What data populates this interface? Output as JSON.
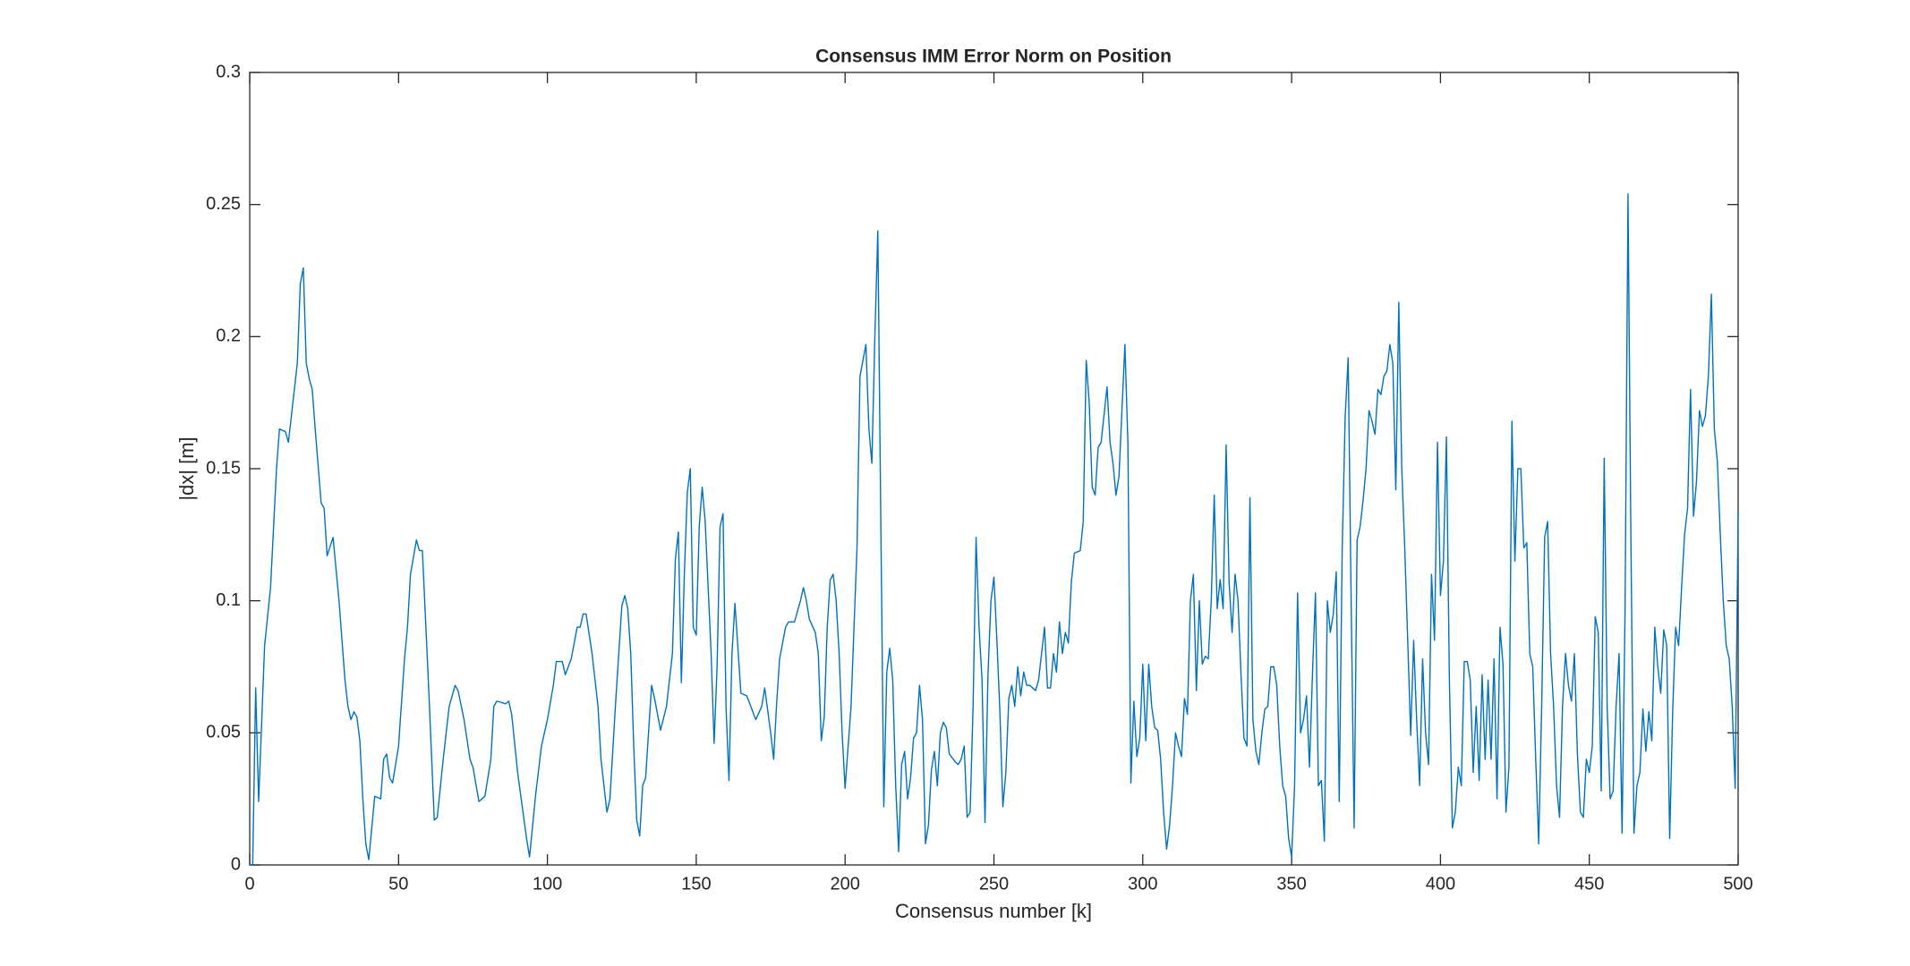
{
  "chart_data": {
    "type": "line",
    "title": "Consensus IMM Error Norm on Position",
    "x_label": "Consensus number [k]",
    "y_label": "|dx| [m]",
    "xlim": [
      0,
      500
    ],
    "ylim": [
      0,
      0.3
    ],
    "xticks": [
      0,
      50,
      100,
      150,
      200,
      250,
      300,
      350,
      400,
      450,
      500
    ],
    "yticks": [
      0,
      0.05,
      0.1,
      0.15,
      0.2,
      0.25,
      0.3
    ],
    "grid": false,
    "series": [
      {
        "color": "#0072bd",
        "x": [
          0,
          1,
          2,
          3,
          5,
          7,
          9,
          10,
          12,
          13,
          14,
          16,
          17,
          18,
          19,
          20,
          21,
          22,
          24,
          25,
          26,
          28,
          30,
          32,
          33,
          34,
          35,
          36,
          37,
          38,
          39,
          40,
          42,
          44,
          45,
          46,
          47,
          48,
          50,
          52,
          53,
          54,
          56,
          57,
          58,
          60,
          62,
          63,
          65,
          67,
          69,
          70,
          72,
          74,
          75,
          77,
          79,
          81,
          82,
          83,
          86,
          87,
          88,
          90,
          93,
          94,
          96,
          98,
          100,
          102,
          103,
          105,
          106,
          108,
          110,
          111,
          112,
          113,
          115,
          117,
          118,
          120,
          121,
          123,
          125,
          126,
          127,
          128,
          129,
          130,
          131,
          132,
          133,
          135,
          136,
          138,
          140,
          142,
          143,
          144,
          145,
          146,
          147,
          148,
          149,
          150,
          151,
          152,
          153,
          155,
          156,
          157,
          158,
          159,
          160,
          161,
          162,
          163,
          165,
          167,
          169,
          170,
          172,
          173,
          175,
          176,
          177,
          178,
          180,
          181,
          183,
          185,
          186,
          187,
          188,
          190,
          191,
          192,
          193,
          194,
          195,
          196,
          197,
          198,
          199,
          200,
          202,
          204,
          205,
          207,
          208,
          209,
          210,
          211,
          212,
          213,
          214,
          215,
          216,
          217,
          218,
          219,
          220,
          221,
          222,
          223,
          224,
          225,
          226,
          227,
          228,
          229,
          230,
          231,
          232,
          233,
          234,
          235,
          237,
          238,
          239,
          240,
          241,
          242,
          243,
          244,
          245,
          246,
          247,
          248,
          249,
          250,
          251,
          252,
          253,
          254,
          255,
          256,
          257,
          258,
          259,
          260,
          261,
          262,
          264,
          265,
          267,
          268,
          269,
          270,
          271,
          272,
          273,
          274,
          275,
          276,
          277,
          279,
          280,
          281,
          282,
          283,
          284,
          285,
          286,
          288,
          289,
          290,
          291,
          292,
          294,
          295,
          296,
          297,
          298,
          299,
          300,
          301,
          302,
          303,
          304,
          305,
          306,
          307,
          308,
          309,
          310,
          311,
          312,
          313,
          314,
          315,
          316,
          317,
          318,
          319,
          320,
          321,
          322,
          323,
          324,
          325,
          326,
          327,
          328,
          329,
          330,
          331,
          332,
          333,
          334,
          335,
          336,
          337,
          338,
          339,
          340,
          341,
          342,
          343,
          344,
          345,
          346,
          347,
          348,
          349,
          350,
          351,
          352,
          353,
          354,
          355,
          356,
          357,
          358,
          359,
          360,
          361,
          362,
          363,
          364,
          365,
          366,
          367,
          368,
          369,
          370,
          371,
          372,
          373,
          374,
          375,
          376,
          377,
          378,
          379,
          380,
          381,
          382,
          383,
          384,
          385,
          386,
          387,
          388,
          389,
          390,
          391,
          392,
          393,
          394,
          395,
          396,
          397,
          398,
          399,
          400,
          401,
          402,
          403,
          404,
          405,
          406,
          407,
          408,
          409,
          410,
          411,
          412,
          413,
          414,
          415,
          416,
          417,
          418,
          419,
          420,
          421,
          422,
          423,
          424,
          425,
          426,
          427,
          428,
          429,
          430,
          431,
          432,
          433,
          434,
          435,
          436,
          437,
          438,
          439,
          440,
          441,
          442,
          443,
          444,
          445,
          446,
          447,
          448,
          449,
          450,
          451,
          452,
          453,
          454,
          455,
          456,
          457,
          458,
          459,
          460,
          461,
          462,
          463,
          464,
          465,
          466,
          467,
          468,
          469,
          470,
          471,
          472,
          473,
          474,
          475,
          476,
          477,
          478,
          479,
          480,
          481,
          482,
          483,
          484,
          485,
          486,
          487,
          488,
          489,
          490,
          491,
          492,
          493,
          494,
          495,
          496,
          497,
          498,
          499,
          500
        ],
        "values": [
          0,
          0,
          0.067,
          0.024,
          0.083,
          0.105,
          0.15,
          0.165,
          0.164,
          0.16,
          0.17,
          0.19,
          0.22,
          0.226,
          0.19,
          0.184,
          0.18,
          0.165,
          0.137,
          0.135,
          0.117,
          0.124,
          0.1,
          0.07,
          0.06,
          0.055,
          0.058,
          0.056,
          0.047,
          0.025,
          0.008,
          0.002,
          0.026,
          0.025,
          0.04,
          0.042,
          0.033,
          0.031,
          0.045,
          0.078,
          0.09,
          0.11,
          0.123,
          0.119,
          0.119,
          0.07,
          0.017,
          0.018,
          0.04,
          0.06,
          0.068,
          0.066,
          0.055,
          0.04,
          0.037,
          0.024,
          0.026,
          0.04,
          0.06,
          0.062,
          0.061,
          0.062,
          0.057,
          0.035,
          0.01,
          0.003,
          0.026,
          0.045,
          0.055,
          0.068,
          0.077,
          0.077,
          0.072,
          0.078,
          0.09,
          0.09,
          0.095,
          0.095,
          0.08,
          0.06,
          0.04,
          0.02,
          0.025,
          0.063,
          0.098,
          0.102,
          0.097,
          0.08,
          0.045,
          0.017,
          0.011,
          0.03,
          0.033,
          0.068,
          0.063,
          0.051,
          0.06,
          0.08,
          0.116,
          0.126,
          0.069,
          0.11,
          0.141,
          0.15,
          0.09,
          0.087,
          0.128,
          0.143,
          0.13,
          0.08,
          0.046,
          0.075,
          0.128,
          0.133,
          0.06,
          0.032,
          0.08,
          0.099,
          0.065,
          0.064,
          0.058,
          0.055,
          0.06,
          0.067,
          0.05,
          0.04,
          0.061,
          0.078,
          0.09,
          0.092,
          0.092,
          0.1,
          0.105,
          0.1,
          0.093,
          0.088,
          0.08,
          0.047,
          0.056,
          0.09,
          0.108,
          0.11,
          0.1,
          0.08,
          0.05,
          0.029,
          0.06,
          0.12,
          0.185,
          0.197,
          0.165,
          0.152,
          0.2,
          0.24,
          0.13,
          0.022,
          0.073,
          0.082,
          0.07,
          0.03,
          0.005,
          0.038,
          0.043,
          0.025,
          0.033,
          0.048,
          0.05,
          0.068,
          0.055,
          0.008,
          0.015,
          0.036,
          0.043,
          0.03,
          0.05,
          0.054,
          0.052,
          0.042,
          0.039,
          0.038,
          0.04,
          0.045,
          0.018,
          0.02,
          0.06,
          0.124,
          0.09,
          0.07,
          0.016,
          0.072,
          0.1,
          0.109,
          0.085,
          0.058,
          0.022,
          0.035,
          0.063,
          0.068,
          0.06,
          0.075,
          0.064,
          0.073,
          0.068,
          0.068,
          0.066,
          0.07,
          0.09,
          0.067,
          0.067,
          0.08,
          0.073,
          0.092,
          0.08,
          0.088,
          0.084,
          0.107,
          0.118,
          0.119,
          0.13,
          0.191,
          0.175,
          0.143,
          0.14,
          0.158,
          0.16,
          0.181,
          0.16,
          0.152,
          0.14,
          0.147,
          0.197,
          0.16,
          0.031,
          0.062,
          0.041,
          0.048,
          0.076,
          0.047,
          0.076,
          0.06,
          0.052,
          0.051,
          0.04,
          0.02,
          0.006,
          0.015,
          0.03,
          0.05,
          0.045,
          0.041,
          0.063,
          0.057,
          0.1,
          0.11,
          0.066,
          0.1,
          0.076,
          0.079,
          0.078,
          0.1,
          0.14,
          0.097,
          0.108,
          0.097,
          0.159,
          0.107,
          0.088,
          0.11,
          0.1,
          0.072,
          0.048,
          0.045,
          0.139,
          0.055,
          0.043,
          0.038,
          0.05,
          0.059,
          0.06,
          0.075,
          0.075,
          0.068,
          0.045,
          0.03,
          0.026,
          0.01,
          0.003,
          0.03,
          0.103,
          0.05,
          0.055,
          0.064,
          0.037,
          0.072,
          0.103,
          0.03,
          0.032,
          0.009,
          0.1,
          0.088,
          0.095,
          0.111,
          0.024,
          0.12,
          0.17,
          0.192,
          0.1,
          0.014,
          0.123,
          0.128,
          0.138,
          0.15,
          0.172,
          0.168,
          0.163,
          0.18,
          0.178,
          0.185,
          0.187,
          0.197,
          0.19,
          0.142,
          0.213,
          0.15,
          0.12,
          0.085,
          0.049,
          0.085,
          0.055,
          0.03,
          0.078,
          0.05,
          0.038,
          0.11,
          0.085,
          0.16,
          0.102,
          0.115,
          0.162,
          0.07,
          0.014,
          0.02,
          0.037,
          0.03,
          0.077,
          0.077,
          0.07,
          0.035,
          0.06,
          0.032,
          0.072,
          0.04,
          0.07,
          0.04,
          0.078,
          0.025,
          0.09,
          0.076,
          0.02,
          0.037,
          0.168,
          0.115,
          0.15,
          0.15,
          0.12,
          0.122,
          0.08,
          0.075,
          0.04,
          0.008,
          0.06,
          0.124,
          0.13,
          0.08,
          0.06,
          0.03,
          0.018,
          0.06,
          0.08,
          0.068,
          0.062,
          0.08,
          0.042,
          0.02,
          0.018,
          0.04,
          0.035,
          0.045,
          0.094,
          0.088,
          0.028,
          0.154,
          0.06,
          0.025,
          0.028,
          0.06,
          0.08,
          0.012,
          0.095,
          0.254,
          0.12,
          0.012,
          0.03,
          0.035,
          0.059,
          0.043,
          0.058,
          0.047,
          0.09,
          0.075,
          0.065,
          0.089,
          0.083,
          0.01,
          0.058,
          0.09,
          0.083,
          0.105,
          0.125,
          0.135,
          0.18,
          0.132,
          0.145,
          0.172,
          0.166,
          0.17,
          0.185,
          0.216,
          0.165,
          0.153,
          0.125,
          0.1,
          0.083,
          0.078,
          0.06,
          0.029,
          0.134
        ]
      }
    ]
  }
}
